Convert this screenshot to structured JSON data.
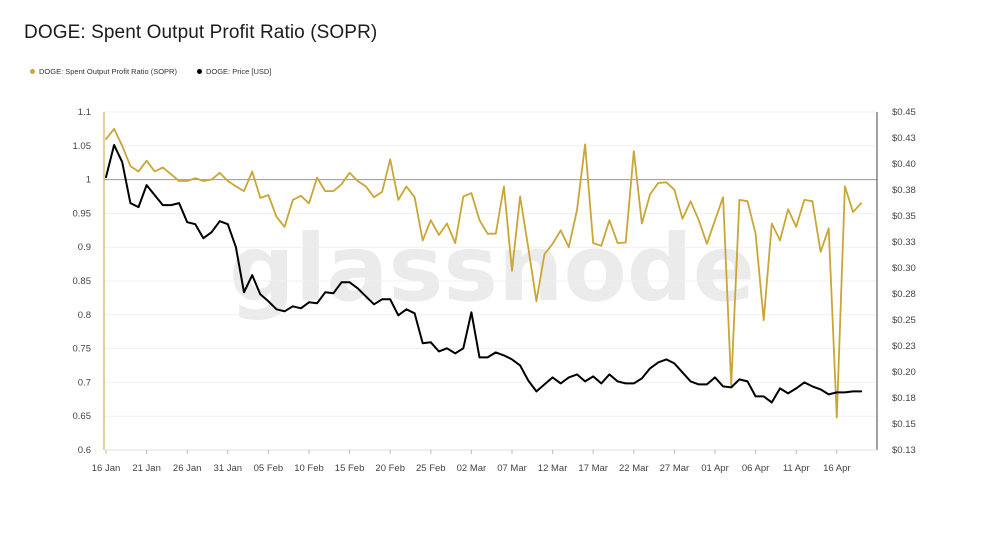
{
  "title": "DOGE: Spent Output Profit Ratio (SOPR)",
  "watermark": "glassnode",
  "legend": [
    {
      "label": "DOGE: Spent Output Profit Ratio (SOPR)",
      "color": "#c9a635"
    },
    {
      "label": "DOGE: Price [USD]",
      "color": "#000000"
    }
  ],
  "chart_data": {
    "type": "line",
    "x_labels": [
      "16 Jan",
      "21 Jan",
      "26 Jan",
      "31 Jan",
      "05 Feb",
      "10 Feb",
      "15 Feb",
      "20 Feb",
      "25 Feb",
      "02 Mar",
      "07 Mar",
      "12 Mar",
      "17 Mar",
      "22 Mar",
      "27 Mar",
      "01 Apr",
      "06 Apr",
      "11 Apr",
      "16 Apr"
    ],
    "x_start": "16 Jan",
    "y_left": {
      "min": 0.6,
      "max": 1.1,
      "ticks": [
        "0.6",
        "0.65",
        "0.7",
        "0.75",
        "0.8",
        "0.85",
        "0.9",
        "0.95",
        "1",
        "1.05",
        "1.1"
      ],
      "reference_line": 1
    },
    "y_right": {
      "min": 0.1125,
      "max": 0.45,
      "ticks": [
        "$0.13",
        "$0.15",
        "$0.18",
        "$0.20",
        "$0.23",
        "$0.25",
        "$0.28",
        "$0.30",
        "$0.33",
        "$0.35",
        "$0.38",
        "$0.40",
        "$0.43",
        "$0.45"
      ]
    },
    "series": [
      {
        "name": "DOGE: Spent Output Profit Ratio (SOPR)",
        "color": "#c9a635",
        "axis": "left",
        "values": [
          1.06,
          1.075,
          1.05,
          1.02,
          1.012,
          1.028,
          1.012,
          1.018,
          1.008,
          0.998,
          0.998,
          1.002,
          0.998,
          1.0,
          1.01,
          0.998,
          0.99,
          0.983,
          1.012,
          0.973,
          0.977,
          0.945,
          0.93,
          0.97,
          0.976,
          0.965,
          1.003,
          0.983,
          0.983,
          0.993,
          1.01,
          0.998,
          0.99,
          0.974,
          0.982,
          1.03,
          0.97,
          0.99,
          0.974,
          0.91,
          0.94,
          0.918,
          0.935,
          0.906,
          0.975,
          0.98,
          0.94,
          0.92,
          0.92,
          0.99,
          0.865,
          0.975,
          0.9,
          0.82,
          0.89,
          0.905,
          0.925,
          0.9,
          0.955,
          1.052,
          0.906,
          0.902,
          0.94,
          0.906,
          0.907,
          1.042,
          0.935,
          0.978,
          0.995,
          0.996,
          0.985,
          0.942,
          0.968,
          0.94,
          0.905,
          0.94,
          0.974,
          0.696,
          0.97,
          0.968,
          0.92,
          0.792,
          0.935,
          0.91,
          0.956,
          0.93,
          0.97,
          0.968,
          0.893,
          0.928,
          0.648,
          0.99,
          0.952,
          0.965
        ]
      },
      {
        "name": "DOGE: Price [USD]",
        "color": "#000000",
        "axis": "right",
        "values": [
          0.385,
          0.417,
          0.4,
          0.359,
          0.355,
          0.377,
          0.367,
          0.357,
          0.357,
          0.359,
          0.34,
          0.338,
          0.324,
          0.33,
          0.341,
          0.338,
          0.315,
          0.27,
          0.287,
          0.268,
          0.261,
          0.253,
          0.251,
          0.256,
          0.254,
          0.26,
          0.259,
          0.27,
          0.269,
          0.28,
          0.28,
          0.274,
          0.266,
          0.258,
          0.263,
          0.263,
          0.247,
          0.253,
          0.249,
          0.219,
          0.22,
          0.211,
          0.214,
          0.209,
          0.214,
          0.25,
          0.205,
          0.205,
          0.21,
          0.207,
          0.203,
          0.197,
          0.182,
          0.171,
          0.178,
          0.185,
          0.179,
          0.185,
          0.188,
          0.181,
          0.186,
          0.179,
          0.188,
          0.181,
          0.179,
          0.179,
          0.184,
          0.194,
          0.2,
          0.203,
          0.199,
          0.19,
          0.181,
          0.178,
          0.178,
          0.185,
          0.176,
          0.175,
          0.183,
          0.181,
          0.166,
          0.166,
          0.16,
          0.174,
          0.169,
          0.174,
          0.18,
          0.176,
          0.173,
          0.168,
          0.17,
          0.17,
          0.171,
          0.171
        ]
      }
    ]
  }
}
